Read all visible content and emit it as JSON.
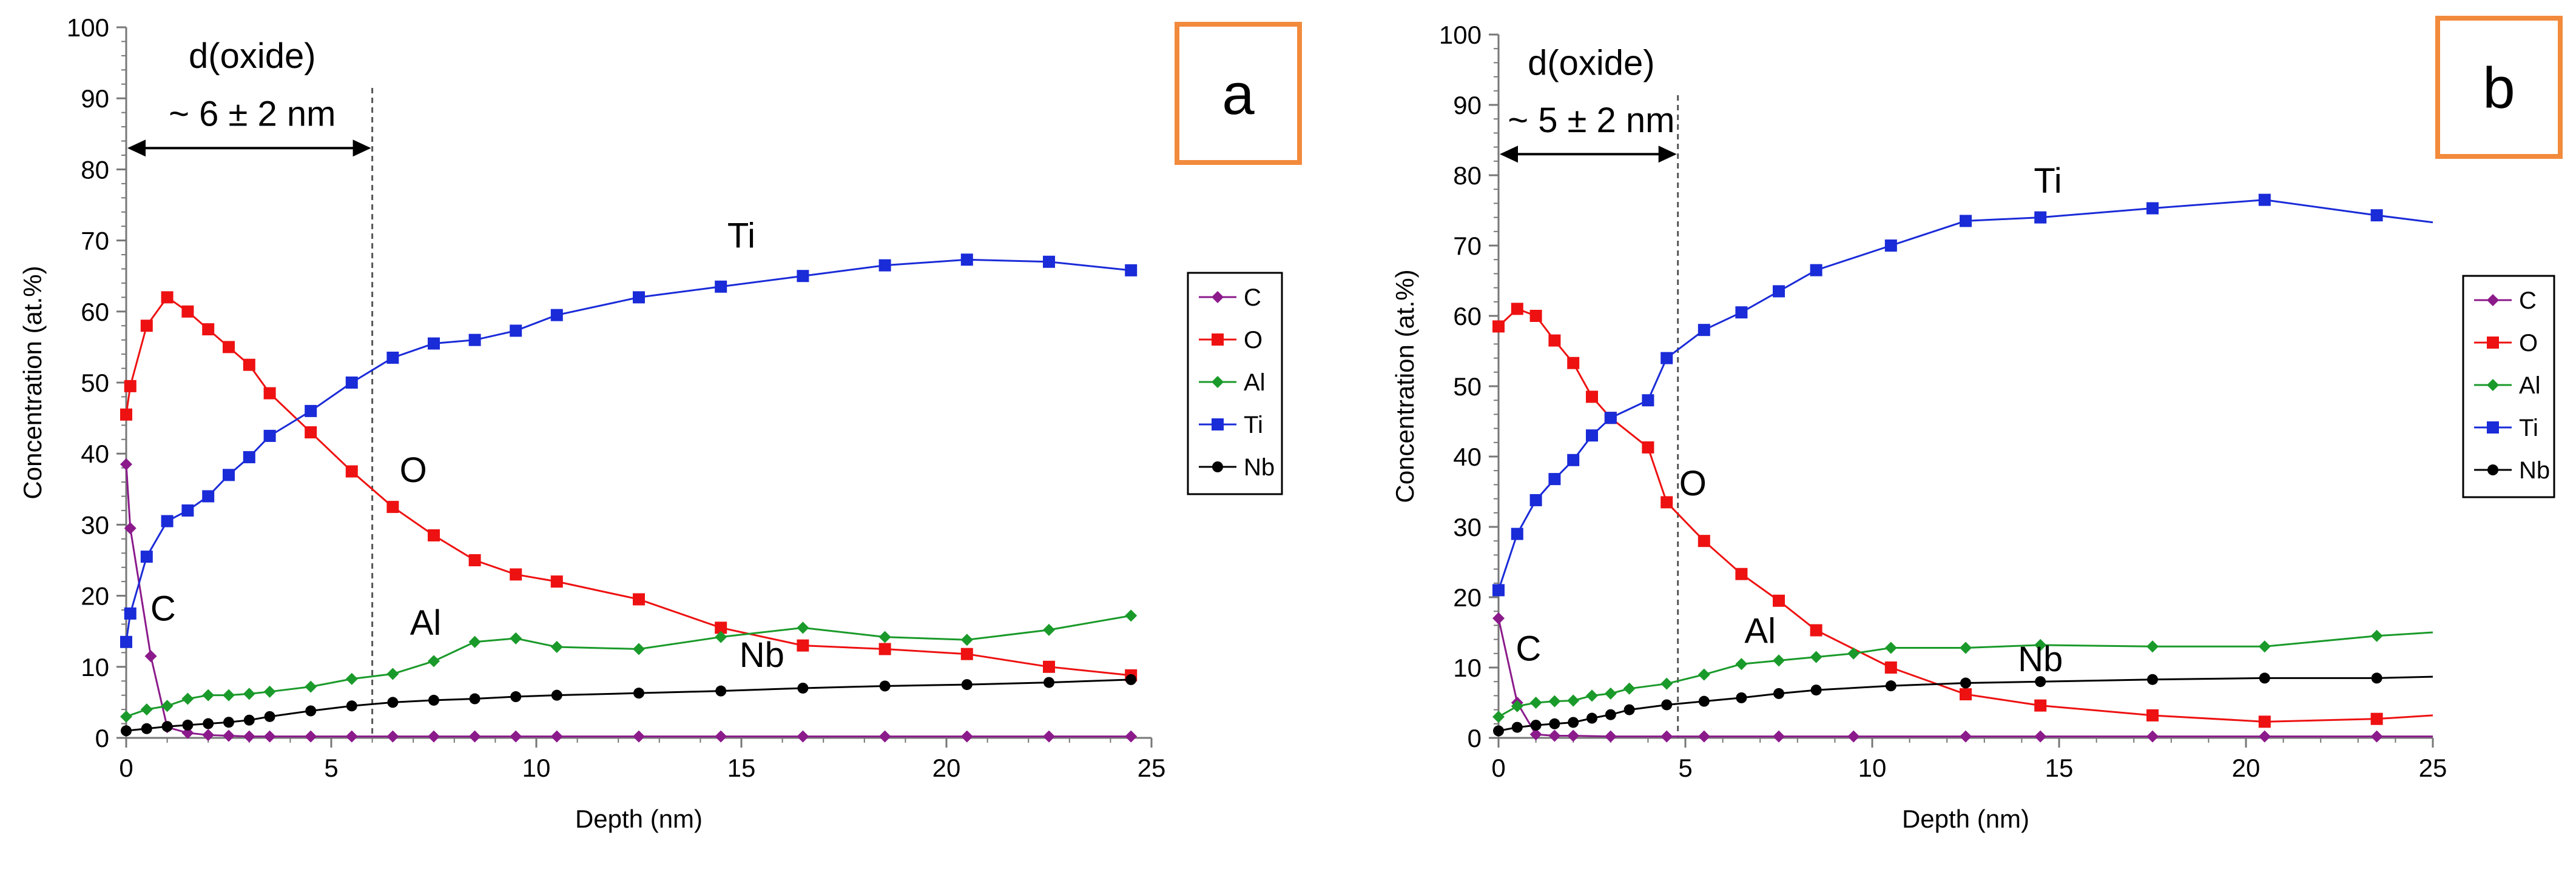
{
  "chart_data": [
    {
      "panel": "a",
      "type": "line",
      "xlabel": "Depth (nm)",
      "ylabel": "Concentration (at.%)",
      "xlim": [
        0,
        25
      ],
      "ylim": [
        0,
        100
      ],
      "xticks": [
        0,
        5,
        10,
        15,
        20,
        25
      ],
      "yticks": [
        0,
        10,
        20,
        30,
        40,
        50,
        60,
        70,
        80,
        90,
        100
      ],
      "oxide_label": "d(oxide)",
      "oxide_value": "~ 6 ± 2 nm",
      "oxide_depth": 6,
      "series": [
        {
          "name": "C",
          "color": "#8b1a8b",
          "marker": "diamond",
          "x": [
            0,
            0.1,
            0.6,
            1.0,
            1.5,
            2,
            2.5,
            3,
            3.5,
            4.5,
            5.5,
            6.5,
            7.5,
            8.5,
            9.5,
            10.5,
            12.5,
            14.5,
            16.5,
            18.5,
            20.5,
            22.5,
            24.5
          ],
          "y": [
            38.5,
            29.5,
            11.5,
            1.5,
            0.7,
            0.4,
            0.3,
            0.2,
            0.2,
            0.2,
            0.2,
            0.2,
            0.2,
            0.2,
            0.2,
            0.2,
            0.2,
            0.2,
            0.2,
            0.2,
            0.2,
            0.2,
            0.2
          ]
        },
        {
          "name": "O",
          "color": "#ee1111",
          "marker": "square",
          "x": [
            0,
            0.1,
            0.5,
            1.0,
            1.5,
            2.0,
            2.5,
            3.0,
            3.5,
            4.5,
            5.5,
            6.5,
            7.5,
            8.5,
            9.5,
            10.5,
            12.5,
            14.5,
            16.5,
            18.5,
            20.5,
            22.5,
            24.5
          ],
          "y": [
            45.5,
            49.5,
            58,
            62,
            60,
            57.5,
            55,
            52.5,
            48.5,
            43,
            37.5,
            32.5,
            28.5,
            25,
            23,
            22,
            19.5,
            15.5,
            13,
            12.5,
            11.8,
            10,
            8.8
          ]
        },
        {
          "name": "Al",
          "color": "#1a9a2a",
          "marker": "diamond",
          "x": [
            0,
            0.5,
            1.0,
            1.5,
            2.0,
            2.5,
            3.0,
            3.5,
            4.5,
            5.5,
            6.5,
            7.5,
            8.5,
            9.5,
            10.5,
            12.5,
            14.5,
            16.5,
            18.5,
            20.5,
            22.5,
            24.5
          ],
          "y": [
            3,
            4,
            4.5,
            5.5,
            6,
            6,
            6.2,
            6.5,
            7.2,
            8.3,
            9,
            10.8,
            13.5,
            14,
            12.8,
            12.5,
            14.2,
            15.5,
            14.2,
            13.8,
            15.2,
            17.2
          ]
        },
        {
          "name": "Ti",
          "color": "#1a2bd8",
          "marker": "square",
          "x": [
            0,
            0.1,
            0.5,
            1.0,
            1.5,
            2.0,
            2.5,
            3.0,
            3.5,
            4.5,
            5.5,
            6.5,
            7.5,
            8.5,
            9.5,
            10.5,
            12.5,
            14.5,
            16.5,
            18.5,
            20.5,
            22.5,
            24.5
          ],
          "y": [
            13.5,
            17.5,
            25.5,
            30.5,
            32,
            34,
            37,
            39.5,
            42.5,
            46,
            50,
            53.5,
            55.5,
            56,
            57.3,
            59.5,
            62,
            63.5,
            65,
            66.5,
            67.3,
            67,
            65.8
          ]
        },
        {
          "name": "Nb",
          "color": "#000000",
          "marker": "circle",
          "x": [
            0,
            0.5,
            1.0,
            1.5,
            2.0,
            2.5,
            3.0,
            3.5,
            4.5,
            5.5,
            6.5,
            7.5,
            8.5,
            9.5,
            10.5,
            12.5,
            14.5,
            16.5,
            18.5,
            20.5,
            22.5,
            24.5
          ],
          "y": [
            1,
            1.3,
            1.6,
            1.8,
            2,
            2.2,
            2.5,
            3,
            3.8,
            4.5,
            5,
            5.3,
            5.5,
            5.8,
            6,
            6.3,
            6.6,
            7,
            7.3,
            7.5,
            7.8,
            8.2
          ]
        }
      ],
      "annotations": [
        {
          "text": "Ti",
          "x": 15,
          "y": 69
        },
        {
          "text": "O",
          "x": 7,
          "y": 36
        },
        {
          "text": "Al",
          "x": 7.3,
          "y": 14.5
        },
        {
          "text": "Nb",
          "x": 15.5,
          "y": 10
        },
        {
          "text": "C",
          "x": 0.9,
          "y": 16.5
        }
      ]
    },
    {
      "panel": "b",
      "type": "line",
      "xlabel": "Depth (nm)",
      "ylabel": "Concentration (at.%)",
      "xlim": [
        0,
        25
      ],
      "ylim": [
        0,
        100
      ],
      "xticks": [
        0,
        5,
        10,
        15,
        20,
        25
      ],
      "yticks": [
        0,
        10,
        20,
        30,
        40,
        50,
        60,
        70,
        80,
        90,
        100
      ],
      "oxide_label": "d(oxide)",
      "oxide_value": "~ 5 ± 2 nm",
      "oxide_depth": 4.8,
      "series": [
        {
          "name": "C",
          "color": "#8b1a8b",
          "marker": "diamond",
          "x": [
            0,
            0.5,
            1.0,
            1.5,
            2.0,
            3.0,
            4.5,
            5.5,
            7.5,
            9.5,
            12.5,
            14.5,
            17.5,
            20.5,
            23.5,
            25
          ],
          "y": [
            17,
            5,
            0.5,
            0.3,
            0.3,
            0.2,
            0.2,
            0.2,
            0.2,
            0.2,
            0.2,
            0.2,
            0.2,
            0.2,
            0.2,
            0.2
          ]
        },
        {
          "name": "O",
          "color": "#ee1111",
          "marker": "square",
          "x": [
            0,
            0.5,
            1.0,
            1.5,
            2.0,
            2.5,
            3.0,
            4.0,
            4.5,
            5.5,
            6.5,
            7.5,
            8.5,
            10.5,
            12.5,
            14.5,
            17.5,
            20.5,
            23.5,
            25
          ],
          "y": [
            58.5,
            61,
            60,
            56.5,
            53.3,
            48.5,
            45.5,
            41.3,
            33.5,
            28,
            23.3,
            19.5,
            15.3,
            10,
            6.2,
            4.6,
            3.2,
            2.3,
            2.7,
            3.2
          ]
        },
        {
          "name": "Al",
          "color": "#1a9a2a",
          "marker": "diamond",
          "x": [
            0,
            0.5,
            1.0,
            1.5,
            2.0,
            2.5,
            3.0,
            3.5,
            4.5,
            5.5,
            6.5,
            7.5,
            8.5,
            9.5,
            10.5,
            12.5,
            14.5,
            17.5,
            20.5,
            23.5,
            25
          ],
          "y": [
            3,
            4.5,
            5,
            5.2,
            5.3,
            6,
            6.3,
            7,
            7.7,
            9,
            10.5,
            11,
            11.5,
            12,
            12.8,
            12.8,
            13.2,
            13,
            13,
            14.5,
            15
          ]
        },
        {
          "name": "Ti",
          "color": "#1a2bd8",
          "marker": "square",
          "x": [
            0,
            0.5,
            1.0,
            1.5,
            2.0,
            2.5,
            3.0,
            4.0,
            4.5,
            5.5,
            6.5,
            7.5,
            8.5,
            10.5,
            12.5,
            14.5,
            17.5,
            20.5,
            23.5,
            25
          ],
          "y": [
            21,
            29,
            33.8,
            36.8,
            39.5,
            43,
            45.5,
            48,
            54,
            58,
            60.5,
            63.5,
            66.5,
            70,
            73.5,
            74,
            75.3,
            76.5,
            74.3,
            73.3
          ]
        },
        {
          "name": "Nb",
          "color": "#000000",
          "marker": "circle",
          "x": [
            0,
            0.5,
            1.0,
            1.5,
            2.0,
            2.5,
            3.0,
            3.5,
            4.5,
            5.5,
            6.5,
            7.5,
            8.5,
            10.5,
            12.5,
            14.5,
            17.5,
            20.5,
            23.5,
            25
          ],
          "y": [
            1,
            1.5,
            1.8,
            2,
            2.2,
            2.8,
            3.3,
            4,
            4.7,
            5.2,
            5.7,
            6.3,
            6.8,
            7.4,
            7.8,
            8,
            8.3,
            8.5,
            8.5,
            8.7
          ]
        }
      ],
      "annotations": [
        {
          "text": "Ti",
          "x": 14.7,
          "y": 77.5
        },
        {
          "text": "O",
          "x": 5.2,
          "y": 34.5
        },
        {
          "text": "Al",
          "x": 7.0,
          "y": 13.5
        },
        {
          "text": "Nb",
          "x": 14.5,
          "y": 9.5
        },
        {
          "text": "C",
          "x": 0.8,
          "y": 11
        }
      ]
    }
  ]
}
